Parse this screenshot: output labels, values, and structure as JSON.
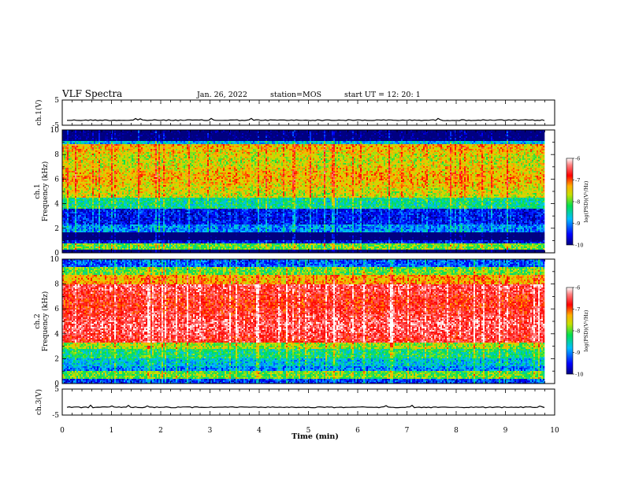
{
  "header": {
    "title": "VLF Spectra",
    "date": "Jan. 26, 2022",
    "station": "station=MOS",
    "start": "start  UT  =   12: 20: 1"
  },
  "chart_data": {
    "type": "heatmap",
    "x_axis": {
      "label": "Time  (min)",
      "range": [
        0,
        10
      ],
      "ticks": [
        "0",
        "1",
        "2",
        "3",
        "4",
        "5",
        "6",
        "7",
        "8",
        "9",
        "10"
      ]
    },
    "panels": [
      {
        "id": "ch1-waveform",
        "type": "line",
        "ylabel": "ch.1(V)",
        "ylim": [
          -5,
          5
        ],
        "yticks": [
          "5",
          "-5"
        ],
        "baseline": -3,
        "data_end_min": 9.8
      },
      {
        "id": "ch1-spectrogram",
        "type": "heatmap",
        "ylabel": "ch.1\nFrequency (kHz)",
        "ylabel_line1": "ch.1",
        "ylabel_line2": "Frequency (kHz)",
        "ylim": [
          0,
          10
        ],
        "yticks": [
          "0",
          "2",
          "4",
          "6",
          "8",
          "10"
        ],
        "data_end_min": 9.8,
        "colorbar": {
          "label": "log(PSD)(V²/Hz)",
          "range": [
            -10,
            -6
          ],
          "ticks": [
            "-6",
            "-7",
            "-8",
            "-9",
            "-10"
          ]
        }
      },
      {
        "id": "ch2-spectrogram",
        "type": "heatmap",
        "ylabel": "ch.2\nFrequency (kHz)",
        "ylabel_line1": "ch.2",
        "ylabel_line2": "Frequency (kHz)",
        "ylim": [
          0,
          10
        ],
        "yticks": [
          "0",
          "2",
          "4",
          "6",
          "8",
          "10"
        ],
        "data_end_min": 9.8,
        "colorbar": {
          "label": "log(PSD)(V²/Hz)",
          "range": [
            -10,
            -6
          ],
          "ticks": [
            "-6",
            "-7",
            "-8",
            "-9",
            "-10"
          ]
        }
      },
      {
        "id": "ch3-waveform",
        "type": "line",
        "ylabel": "ch.3(V)",
        "ylim": [
          -5,
          5
        ],
        "yticks": [
          "5",
          "-5"
        ],
        "baseline": -2,
        "data_end_min": 9.8
      }
    ]
  }
}
